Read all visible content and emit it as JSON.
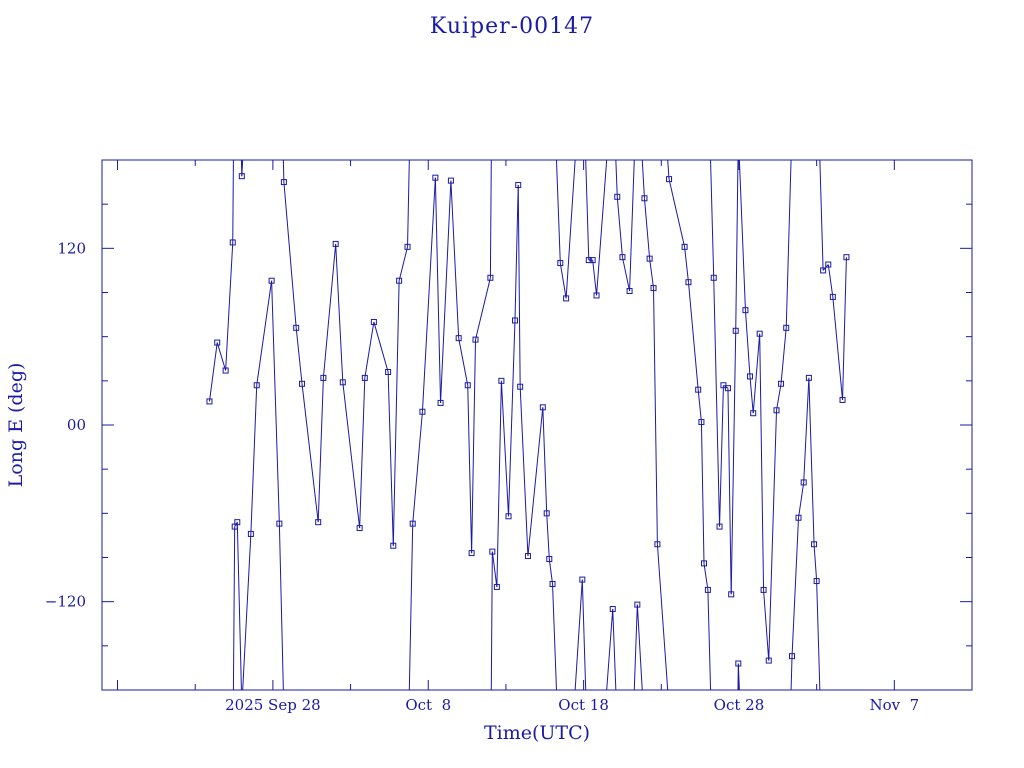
{
  "chart_data": {
    "type": "scatter",
    "title": "Kuiper-00147",
    "xlabel": "Time(UTC)",
    "ylabel": "Long E (deg)",
    "x_unit": "days",
    "xlim": [
      "2025-09-17",
      "2025-11-12"
    ],
    "ylim": [
      -180,
      180
    ],
    "xticks": [
      {
        "date": "2025-09-28",
        "label": "2025 Sep 28"
      },
      {
        "date": "2025-10-08",
        "label": "Oct  8"
      },
      {
        "date": "2025-10-18",
        "label": "Oct 18"
      },
      {
        "date": "2025-10-28",
        "label": "Oct 28"
      },
      {
        "date": "2025-11-07",
        "label": "Nov  7"
      }
    ],
    "yticks": [
      {
        "value": 120,
        "label": "120"
      },
      {
        "value": 0,
        "label": "00"
      },
      {
        "value": -120,
        "label": "−120"
      }
    ],
    "color": "#1a1aa6",
    "series": [
      {
        "name": "",
        "points": [
          [
            "2025-09-23T22:00",
            16
          ],
          [
            "2025-09-24T10:00",
            56
          ],
          [
            "2025-09-24T23:00",
            37
          ],
          [
            "2025-09-25T10:00",
            124
          ],
          [
            "2025-09-25T13:00",
            -69
          ],
          [
            "2025-09-25T17:00",
            -66
          ],
          [
            "2025-09-26T00:00",
            169
          ],
          [
            "2025-09-26T14:00",
            -74
          ],
          [
            "2025-09-26T23:00",
            27
          ],
          [
            "2025-09-27T22:00",
            98
          ],
          [
            "2025-09-28T10:00",
            -67
          ],
          [
            "2025-09-28T17:00",
            165
          ],
          [
            "2025-09-29T12:00",
            66
          ],
          [
            "2025-09-29T21:00",
            28
          ],
          [
            "2025-09-30T22:00",
            -66
          ],
          [
            "2025-10-01T06:00",
            32
          ],
          [
            "2025-10-02T01:00",
            123
          ],
          [
            "2025-10-02T12:00",
            29
          ],
          [
            "2025-10-03T14:00",
            -70
          ],
          [
            "2025-10-03T22:00",
            32
          ],
          [
            "2025-10-04T12:00",
            70
          ],
          [
            "2025-10-05T10:00",
            36
          ],
          [
            "2025-10-05T18:00",
            -82
          ],
          [
            "2025-10-06T03:00",
            98
          ],
          [
            "2025-10-06T16:00",
            121
          ],
          [
            "2025-10-07T00:00",
            -67
          ],
          [
            "2025-10-07T15:00",
            9
          ],
          [
            "2025-10-08T11:00",
            168
          ],
          [
            "2025-10-08T19:00",
            15
          ],
          [
            "2025-10-09T11:00",
            166
          ],
          [
            "2025-10-09T23:00",
            59
          ],
          [
            "2025-10-10T13:00",
            27
          ],
          [
            "2025-10-10T19:00",
            -87
          ],
          [
            "2025-10-11T01:00",
            58
          ],
          [
            "2025-10-12T00:00",
            100
          ],
          [
            "2025-10-12T03:00",
            -86
          ],
          [
            "2025-10-12T10:00",
            -110
          ],
          [
            "2025-10-12T17:00",
            30
          ],
          [
            "2025-10-13T04:00",
            -62
          ],
          [
            "2025-10-13T14:00",
            71
          ],
          [
            "2025-10-13T19:00",
            163
          ],
          [
            "2025-10-13T22:00",
            26
          ],
          [
            "2025-10-14T10:00",
            -89
          ],
          [
            "2025-10-15T09:00",
            12
          ],
          [
            "2025-10-15T15:00",
            -60
          ],
          [
            "2025-10-15T19:00",
            -91
          ],
          [
            "2025-10-16T00:00",
            -108
          ],
          [
            "2025-10-16T12:00",
            110
          ],
          [
            "2025-10-16T21:00",
            86
          ],
          [
            "2025-10-17T22:00",
            -105
          ],
          [
            "2025-10-18T08:00",
            112
          ],
          [
            "2025-10-18T14:00",
            112
          ],
          [
            "2025-10-18T20:00",
            88
          ],
          [
            "2025-10-19T21:00",
            -125
          ],
          [
            "2025-10-20T04:00",
            155
          ],
          [
            "2025-10-20T12:00",
            114
          ],
          [
            "2025-10-20T23:00",
            91
          ],
          [
            "2025-10-21T11:00",
            -122
          ],
          [
            "2025-10-21T22:00",
            154
          ],
          [
            "2025-10-22T06:00",
            113
          ],
          [
            "2025-10-22T12:00",
            93
          ],
          [
            "2025-10-22T18:00",
            -81
          ],
          [
            "2025-10-23T12:00",
            167
          ],
          [
            "2025-10-24T12:00",
            121
          ],
          [
            "2025-10-24T18:00",
            97
          ],
          [
            "2025-10-25T09:00",
            24
          ],
          [
            "2025-10-25T14:00",
            2
          ],
          [
            "2025-10-25T18:00",
            -94
          ],
          [
            "2025-10-26T00:00",
            -112
          ],
          [
            "2025-10-26T09:00",
            100
          ],
          [
            "2025-10-26T18:00",
            -69
          ],
          [
            "2025-10-27T00:00",
            27
          ],
          [
            "2025-10-27T07:00",
            25
          ],
          [
            "2025-10-27T12:00",
            -115
          ],
          [
            "2025-10-27T19:00",
            64
          ],
          [
            "2025-10-27T23:00",
            -162
          ],
          [
            "2025-10-28T10:00",
            78
          ],
          [
            "2025-10-28T17:00",
            33
          ],
          [
            "2025-10-28T22:00",
            8
          ],
          [
            "2025-10-29T08:00",
            62
          ],
          [
            "2025-10-29T14:00",
            -112
          ],
          [
            "2025-10-29T22:00",
            -160
          ],
          [
            "2025-10-30T10:00",
            10
          ],
          [
            "2025-10-30T17:00",
            28
          ],
          [
            "2025-10-31T01:00",
            66
          ],
          [
            "2025-10-31T10:00",
            -157
          ],
          [
            "2025-10-31T20:00",
            -63
          ],
          [
            "2025-11-01T04:00",
            -39
          ],
          [
            "2025-11-01T12:00",
            32
          ],
          [
            "2025-11-01T20:00",
            -81
          ],
          [
            "2025-11-02T00:00",
            -106
          ],
          [
            "2025-11-02T10:00",
            105
          ],
          [
            "2025-11-02T18:00",
            109
          ],
          [
            "2025-11-03T01:00",
            87
          ],
          [
            "2025-11-03T16:00",
            17
          ],
          [
            "2025-11-03T22:00",
            114
          ]
        ]
      }
    ]
  }
}
